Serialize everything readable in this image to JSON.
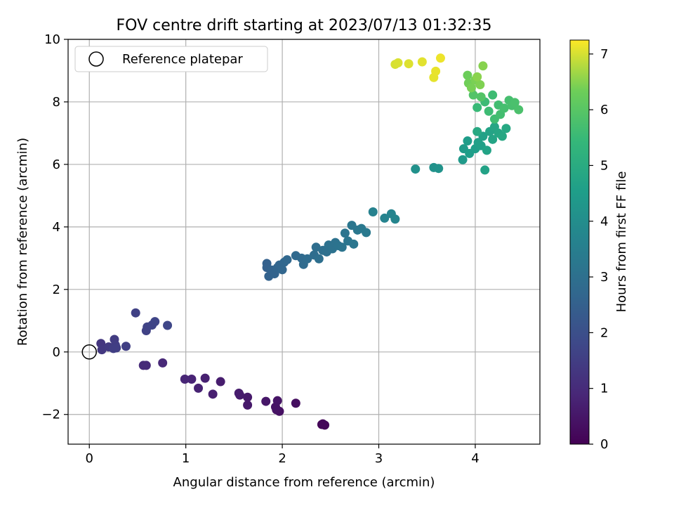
{
  "chart_data": {
    "type": "scatter",
    "title": "FOV centre drift starting at 2023/07/13 01:32:35",
    "xlabel": "Angular distance from reference (arcmin)",
    "ylabel": "Rotation from reference (arcmin)",
    "xlim": [
      -0.22,
      4.67
    ],
    "ylim": [
      -2.95,
      10
    ],
    "xticks": [
      "0",
      "1",
      "2",
      "3",
      "4"
    ],
    "yticks": [
      "−2",
      "0",
      "2",
      "4",
      "6",
      "8",
      "10"
    ],
    "grid": true,
    "legend": {
      "label": "Reference platepar",
      "position": "top-left"
    },
    "reference_point": {
      "x": 0,
      "y": 0
    },
    "colorbar": {
      "label": "Hours from first FF file",
      "range": [
        0,
        7.25
      ],
      "ticks": [
        "0",
        "1",
        "2",
        "3",
        "4",
        "5",
        "6",
        "7"
      ],
      "colormap": "viridis"
    },
    "points": [
      {
        "x": 2.41,
        "y": -2.32,
        "c": 0.05
      },
      {
        "x": 2.44,
        "y": -2.34,
        "c": 0.1
      },
      {
        "x": 2.42,
        "y": -2.3,
        "c": 0.15
      },
      {
        "x": 2.14,
        "y": -1.64,
        "c": 0.3
      },
      {
        "x": 1.97,
        "y": -1.9,
        "c": 0.35
      },
      {
        "x": 1.94,
        "y": -1.85,
        "c": 0.4
      },
      {
        "x": 1.93,
        "y": -1.76,
        "c": 0.42
      },
      {
        "x": 1.95,
        "y": -1.56,
        "c": 0.45
      },
      {
        "x": 1.83,
        "y": -1.58,
        "c": 0.5
      },
      {
        "x": 1.64,
        "y": -1.7,
        "c": 0.55
      },
      {
        "x": 1.64,
        "y": -1.45,
        "c": 0.58
      },
      {
        "x": 1.56,
        "y": -1.38,
        "c": 0.6
      },
      {
        "x": 1.55,
        "y": -1.32,
        "c": 0.62
      },
      {
        "x": 1.36,
        "y": -0.95,
        "c": 0.66
      },
      {
        "x": 1.28,
        "y": -1.35,
        "c": 0.7
      },
      {
        "x": 1.2,
        "y": -0.84,
        "c": 0.74
      },
      {
        "x": 1.13,
        "y": -1.16,
        "c": 0.78
      },
      {
        "x": 1.06,
        "y": -0.87,
        "c": 0.82
      },
      {
        "x": 0.99,
        "y": -0.87,
        "c": 0.86
      },
      {
        "x": 0.76,
        "y": -0.35,
        "c": 0.92
      },
      {
        "x": 0.59,
        "y": -0.43,
        "c": 0.96
      },
      {
        "x": 0.56,
        "y": -0.43,
        "c": 0.98
      },
      {
        "x": 0.12,
        "y": 0.27,
        "c": 1.3
      },
      {
        "x": 0.13,
        "y": 0.07,
        "c": 1.35
      },
      {
        "x": 0.2,
        "y": 0.16,
        "c": 1.4
      },
      {
        "x": 0.26,
        "y": 0.4,
        "c": 1.45
      },
      {
        "x": 0.27,
        "y": 0.22,
        "c": 1.48
      },
      {
        "x": 0.25,
        "y": 0.11,
        "c": 1.5
      },
      {
        "x": 0.28,
        "y": 0.13,
        "c": 1.52
      },
      {
        "x": 0.38,
        "y": 0.18,
        "c": 1.55
      },
      {
        "x": 0.48,
        "y": 1.25,
        "c": 1.6
      },
      {
        "x": 0.59,
        "y": 0.68,
        "c": 1.62
      },
      {
        "x": 0.6,
        "y": 0.8,
        "c": 1.65
      },
      {
        "x": 0.65,
        "y": 0.86,
        "c": 1.68
      },
      {
        "x": 0.68,
        "y": 0.97,
        "c": 1.7
      },
      {
        "x": 0.81,
        "y": 0.85,
        "c": 1.75
      },
      {
        "x": 1.84,
        "y": 2.83,
        "c": 2.5
      },
      {
        "x": 1.84,
        "y": 2.7,
        "c": 2.52
      },
      {
        "x": 1.86,
        "y": 2.42,
        "c": 2.55
      },
      {
        "x": 1.89,
        "y": 2.62,
        "c": 2.58
      },
      {
        "x": 1.92,
        "y": 2.5,
        "c": 2.6
      },
      {
        "x": 1.95,
        "y": 2.7,
        "c": 2.62
      },
      {
        "x": 1.97,
        "y": 2.78,
        "c": 2.65
      },
      {
        "x": 2.0,
        "y": 2.63,
        "c": 2.68
      },
      {
        "x": 2.02,
        "y": 2.87,
        "c": 2.7
      },
      {
        "x": 2.05,
        "y": 2.95,
        "c": 2.72
      },
      {
        "x": 2.14,
        "y": 3.08,
        "c": 2.76
      },
      {
        "x": 2.2,
        "y": 3.0,
        "c": 2.8
      },
      {
        "x": 2.22,
        "y": 2.8,
        "c": 2.82
      },
      {
        "x": 2.26,
        "y": 2.98,
        "c": 2.85
      },
      {
        "x": 2.33,
        "y": 3.1,
        "c": 2.9
      },
      {
        "x": 2.35,
        "y": 3.35,
        "c": 2.92
      },
      {
        "x": 2.38,
        "y": 2.98,
        "c": 2.95
      },
      {
        "x": 2.42,
        "y": 3.25,
        "c": 2.98
      },
      {
        "x": 2.46,
        "y": 3.2,
        "c": 3.0
      },
      {
        "x": 2.48,
        "y": 3.42,
        "c": 3.02
      },
      {
        "x": 2.52,
        "y": 3.3,
        "c": 3.05
      },
      {
        "x": 2.55,
        "y": 3.5,
        "c": 3.08
      },
      {
        "x": 2.58,
        "y": 3.4,
        "c": 3.1
      },
      {
        "x": 2.62,
        "y": 3.35,
        "c": 3.12
      },
      {
        "x": 2.65,
        "y": 3.8,
        "c": 3.15
      },
      {
        "x": 2.68,
        "y": 3.55,
        "c": 3.18
      },
      {
        "x": 2.72,
        "y": 4.05,
        "c": 3.2
      },
      {
        "x": 2.74,
        "y": 3.45,
        "c": 3.22
      },
      {
        "x": 2.78,
        "y": 3.9,
        "c": 3.25
      },
      {
        "x": 2.82,
        "y": 3.95,
        "c": 3.28
      },
      {
        "x": 2.87,
        "y": 3.82,
        "c": 3.3
      },
      {
        "x": 2.94,
        "y": 4.48,
        "c": 3.6
      },
      {
        "x": 3.06,
        "y": 4.28,
        "c": 3.65
      },
      {
        "x": 3.13,
        "y": 4.42,
        "c": 3.7
      },
      {
        "x": 3.17,
        "y": 4.25,
        "c": 3.72
      },
      {
        "x": 3.38,
        "y": 5.85,
        "c": 4.1
      },
      {
        "x": 3.57,
        "y": 5.9,
        "c": 4.15
      },
      {
        "x": 3.62,
        "y": 5.87,
        "c": 4.18
      },
      {
        "x": 3.87,
        "y": 6.15,
        "c": 4.4
      },
      {
        "x": 3.88,
        "y": 6.5,
        "c": 4.45
      },
      {
        "x": 3.92,
        "y": 6.75,
        "c": 4.5
      },
      {
        "x": 3.94,
        "y": 6.35,
        "c": 4.52
      },
      {
        "x": 4.0,
        "y": 6.5,
        "c": 4.55
      },
      {
        "x": 4.03,
        "y": 6.7,
        "c": 4.6
      },
      {
        "x": 4.06,
        "y": 6.6,
        "c": 4.62
      },
      {
        "x": 4.08,
        "y": 6.9,
        "c": 4.65
      },
      {
        "x": 4.1,
        "y": 5.82,
        "c": 4.68
      },
      {
        "x": 4.12,
        "y": 6.45,
        "c": 4.7
      },
      {
        "x": 4.15,
        "y": 7.05,
        "c": 4.72
      },
      {
        "x": 4.18,
        "y": 6.8,
        "c": 4.75
      },
      {
        "x": 4.2,
        "y": 7.2,
        "c": 4.8
      },
      {
        "x": 4.24,
        "y": 7.0,
        "c": 4.82
      },
      {
        "x": 4.28,
        "y": 6.9,
        "c": 4.85
      },
      {
        "x": 4.32,
        "y": 7.15,
        "c": 4.88
      },
      {
        "x": 4.02,
        "y": 7.05,
        "c": 4.9
      },
      {
        "x": 4.02,
        "y": 7.82,
        "c": 5.5
      },
      {
        "x": 4.1,
        "y": 8.0,
        "c": 5.55
      },
      {
        "x": 4.14,
        "y": 7.7,
        "c": 5.58
      },
      {
        "x": 4.18,
        "y": 8.22,
        "c": 5.6
      },
      {
        "x": 4.2,
        "y": 7.45,
        "c": 5.62
      },
      {
        "x": 4.24,
        "y": 7.9,
        "c": 5.65
      },
      {
        "x": 4.26,
        "y": 7.6,
        "c": 5.68
      },
      {
        "x": 4.3,
        "y": 7.8,
        "c": 5.7
      },
      {
        "x": 4.35,
        "y": 8.05,
        "c": 5.72
      },
      {
        "x": 4.38,
        "y": 7.88,
        "c": 5.75
      },
      {
        "x": 4.41,
        "y": 7.98,
        "c": 5.78
      },
      {
        "x": 4.45,
        "y": 7.75,
        "c": 5.8
      },
      {
        "x": 3.98,
        "y": 8.22,
        "c": 5.9
      },
      {
        "x": 4.06,
        "y": 8.16,
        "c": 5.92
      },
      {
        "x": 3.92,
        "y": 8.85,
        "c": 6.3
      },
      {
        "x": 3.93,
        "y": 8.6,
        "c": 6.35
      },
      {
        "x": 3.96,
        "y": 8.45,
        "c": 6.4
      },
      {
        "x": 4.0,
        "y": 8.7,
        "c": 6.42
      },
      {
        "x": 4.05,
        "y": 8.55,
        "c": 6.45
      },
      {
        "x": 4.08,
        "y": 9.15,
        "c": 6.5
      },
      {
        "x": 4.02,
        "y": 8.8,
        "c": 6.52
      },
      {
        "x": 3.17,
        "y": 9.2,
        "c": 7.0
      },
      {
        "x": 3.2,
        "y": 9.25,
        "c": 7.02
      },
      {
        "x": 3.31,
        "y": 9.22,
        "c": 7.05
      },
      {
        "x": 3.45,
        "y": 9.28,
        "c": 7.08
      },
      {
        "x": 3.57,
        "y": 8.78,
        "c": 7.1
      },
      {
        "x": 3.59,
        "y": 8.98,
        "c": 7.12
      },
      {
        "x": 3.64,
        "y": 9.4,
        "c": 7.15
      }
    ]
  }
}
